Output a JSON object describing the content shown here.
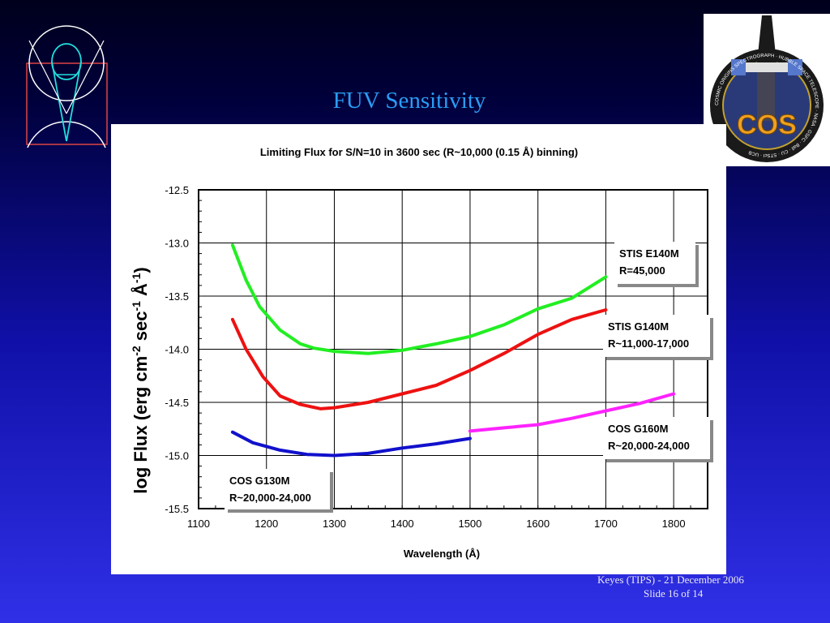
{
  "slide": {
    "title": "FUV Sensitivity",
    "footer_line1": "Keyes (TIPS) - 21 December 2006",
    "footer_line2": "Slide 16 of  14"
  },
  "logo": {
    "patch_text": "COS",
    "patch_ring_text": "COSMIC ORIGINS SPECTROGRAPH · HUBBLE SPACE TELESCOPE · NASA · GSFC · Ball · CU · STScI · UCB"
  },
  "colors": {
    "green": "#22ee22",
    "red": "#ee1111",
    "blue": "#1111cc",
    "magenta": "#ff22ff",
    "title": "#2a9df4"
  },
  "chart_data": {
    "type": "line",
    "title": "Limiting Flux for S/N=10 in 3600 sec (R~10,000 (0.15 Å) binning)",
    "xlabel": "Wavelength (Å)",
    "ylabel_parts": [
      "log Flux (erg cm",
      "-2",
      " sec",
      "-1",
      " Å",
      "-1",
      ")"
    ],
    "xlim": [
      1100,
      1850
    ],
    "ylim": [
      -15.5,
      -12.5
    ],
    "xticks": [
      1100,
      1200,
      1300,
      1400,
      1500,
      1600,
      1700,
      1800
    ],
    "xtick_labels": [
      "1100",
      "1200",
      "1300",
      "1400",
      "1500",
      "1600",
      "1700",
      "1800"
    ],
    "yticks": [
      -12.5,
      -13.0,
      -13.5,
      -14.0,
      -14.5,
      -15.0,
      -15.5
    ],
    "ytick_labels": [
      "-12.5",
      "-13.0",
      "-13.5",
      "-14.0",
      "-14.5",
      "-15.0",
      "-15.5"
    ],
    "grid": true,
    "series": [
      {
        "key": "stis_e140m",
        "color": "#22ee22",
        "x": [
          1150,
          1170,
          1190,
          1220,
          1250,
          1270,
          1300,
          1350,
          1400,
          1450,
          1500,
          1550,
          1600,
          1650,
          1700
        ],
        "y": [
          -13.02,
          -13.35,
          -13.6,
          -13.82,
          -13.95,
          -13.99,
          -14.02,
          -14.04,
          -14.01,
          -13.95,
          -13.88,
          -13.77,
          -13.62,
          -13.52,
          -13.32
        ],
        "label_lines": [
          "STIS E140M",
          "R=45,000"
        ]
      },
      {
        "key": "stis_g140m",
        "color": "#ee1111",
        "x": [
          1150,
          1170,
          1195,
          1220,
          1250,
          1280,
          1300,
          1350,
          1400,
          1450,
          1500,
          1550,
          1600,
          1650,
          1700
        ],
        "y": [
          -13.72,
          -14.0,
          -14.26,
          -14.44,
          -14.52,
          -14.56,
          -14.55,
          -14.5,
          -14.42,
          -14.34,
          -14.2,
          -14.04,
          -13.86,
          -13.72,
          -13.63
        ],
        "label_lines": [
          "STIS G140M",
          "R~11,000-17,000"
        ]
      },
      {
        "key": "cos_g130m",
        "color": "#1111cc",
        "x": [
          1150,
          1180,
          1220,
          1260,
          1300,
          1350,
          1400,
          1450,
          1500
        ],
        "y": [
          -14.78,
          -14.88,
          -14.95,
          -14.99,
          -15.0,
          -14.98,
          -14.93,
          -14.89,
          -14.84
        ],
        "label_lines": [
          "COS G130M",
          "R~20,000-24,000"
        ]
      },
      {
        "key": "cos_g160m",
        "color": "#ff22ff",
        "x": [
          1500,
          1550,
          1600,
          1650,
          1700,
          1750,
          1800
        ],
        "y": [
          -14.77,
          -14.74,
          -14.71,
          -14.65,
          -14.58,
          -14.51,
          -14.42
        ],
        "label_lines": [
          "COS G160M",
          "R~20,000-24,000"
        ]
      }
    ]
  }
}
